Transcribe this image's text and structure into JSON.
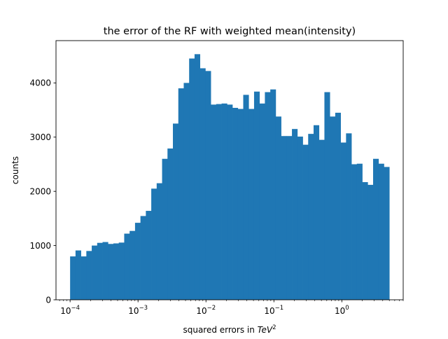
{
  "chart_data": {
    "type": "bar",
    "title": "the error of the RF with weighted mean(intensity)",
    "xlabel_prefix": "squared errors in ",
    "xlabel_unit": "TeV",
    "xlabel_exponent": "2",
    "ylabel": "counts",
    "x_scale": "log",
    "xlim": [
      6.2e-05,
      8.0
    ],
    "ylim": [
      0,
      4780
    ],
    "color": "#1f77b4",
    "grid": false,
    "bin_range": [
      0.0001,
      5.0
    ],
    "x_ticks": [
      {
        "value": 0.0001,
        "base": "10",
        "exp": "−4"
      },
      {
        "value": 0.001,
        "base": "10",
        "exp": "−3"
      },
      {
        "value": 0.01,
        "base": "10",
        "exp": "−2"
      },
      {
        "value": 0.1,
        "base": "10",
        "exp": "−1"
      },
      {
        "value": 1,
        "base": "10",
        "exp": "0"
      }
    ],
    "y_ticks": [
      {
        "value": 0,
        "label": "0"
      },
      {
        "value": 1000,
        "label": "1000"
      },
      {
        "value": 2000,
        "label": "2000"
      },
      {
        "value": 3000,
        "label": "3000"
      },
      {
        "value": 4000,
        "label": "4000"
      }
    ],
    "values": [
      800,
      910,
      800,
      900,
      1000,
      1050,
      1065,
      1030,
      1040,
      1055,
      1220,
      1270,
      1420,
      1545,
      1640,
      2050,
      2150,
      2600,
      2790,
      3250,
      3900,
      4000,
      4450,
      4530,
      4270,
      4220,
      3600,
      3610,
      3620,
      3600,
      3540,
      3520,
      3780,
      3520,
      3840,
      3620,
      3830,
      3880,
      3380,
      3020,
      3020,
      3150,
      3010,
      2860,
      3060,
      3220,
      2950,
      3830,
      3380,
      3450,
      2900,
      3070,
      2500,
      2510,
      2170,
      2120,
      2600,
      2510,
      2450
    ]
  }
}
